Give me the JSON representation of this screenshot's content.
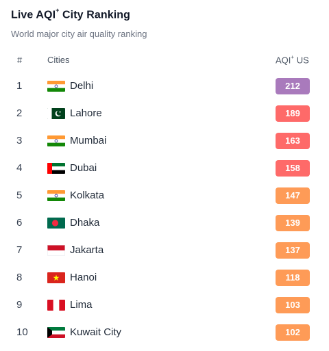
{
  "header": {
    "title_main": "Live AQI",
    "title_sup": "+",
    "title_rest": " City Ranking",
    "subtitle": "World major city air quality ranking"
  },
  "table": {
    "col_rank": "#",
    "col_city": "Cities",
    "col_aqi_main": "AQI",
    "col_aqi_sup": "+",
    "col_aqi_rest": " US",
    "rows": [
      {
        "rank": "1",
        "city": "Delhi",
        "aqi": "212",
        "flag": "india-flag-icon",
        "color": "#a97abc"
      },
      {
        "rank": "2",
        "city": "Lahore",
        "aqi": "189",
        "flag": "pakistan-flag-icon",
        "color": "#fe6a69"
      },
      {
        "rank": "3",
        "city": "Mumbai",
        "aqi": "163",
        "flag": "india-flag-icon",
        "color": "#fe6a69"
      },
      {
        "rank": "4",
        "city": "Dubai",
        "aqi": "158",
        "flag": "uae-flag-icon",
        "color": "#fe6a69"
      },
      {
        "rank": "5",
        "city": "Kolkata",
        "aqi": "147",
        "flag": "india-flag-icon",
        "color": "#fe9b57"
      },
      {
        "rank": "6",
        "city": "Dhaka",
        "aqi": "139",
        "flag": "bangladesh-flag-icon",
        "color": "#fe9b57"
      },
      {
        "rank": "7",
        "city": "Jakarta",
        "aqi": "137",
        "flag": "indonesia-flag-icon",
        "color": "#fe9b57"
      },
      {
        "rank": "8",
        "city": "Hanoi",
        "aqi": "118",
        "flag": "vietnam-flag-icon",
        "color": "#fe9b57"
      },
      {
        "rank": "9",
        "city": "Lima",
        "aqi": "103",
        "flag": "peru-flag-icon",
        "color": "#fe9b57"
      },
      {
        "rank": "10",
        "city": "Kuwait City",
        "aqi": "102",
        "flag": "kuwait-flag-icon",
        "color": "#fe9b57"
      }
    ]
  }
}
